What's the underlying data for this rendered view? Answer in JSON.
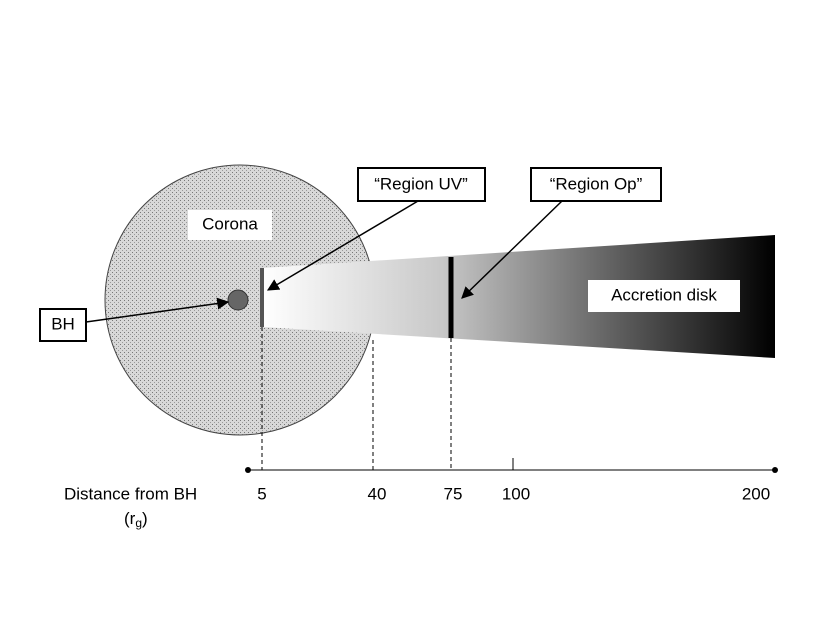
{
  "labels": {
    "corona": "Corona",
    "region_uv": "“Region UV”",
    "region_op": "“Region Op”",
    "bh": "BH",
    "accretion_disk": "Accretion disk"
  },
  "axis": {
    "title": "Distance from BH",
    "unit_open": "(r",
    "unit_sub": "g",
    "unit_close": ")",
    "ticks": [
      "5",
      "40",
      "75",
      "100",
      "200"
    ]
  }
}
